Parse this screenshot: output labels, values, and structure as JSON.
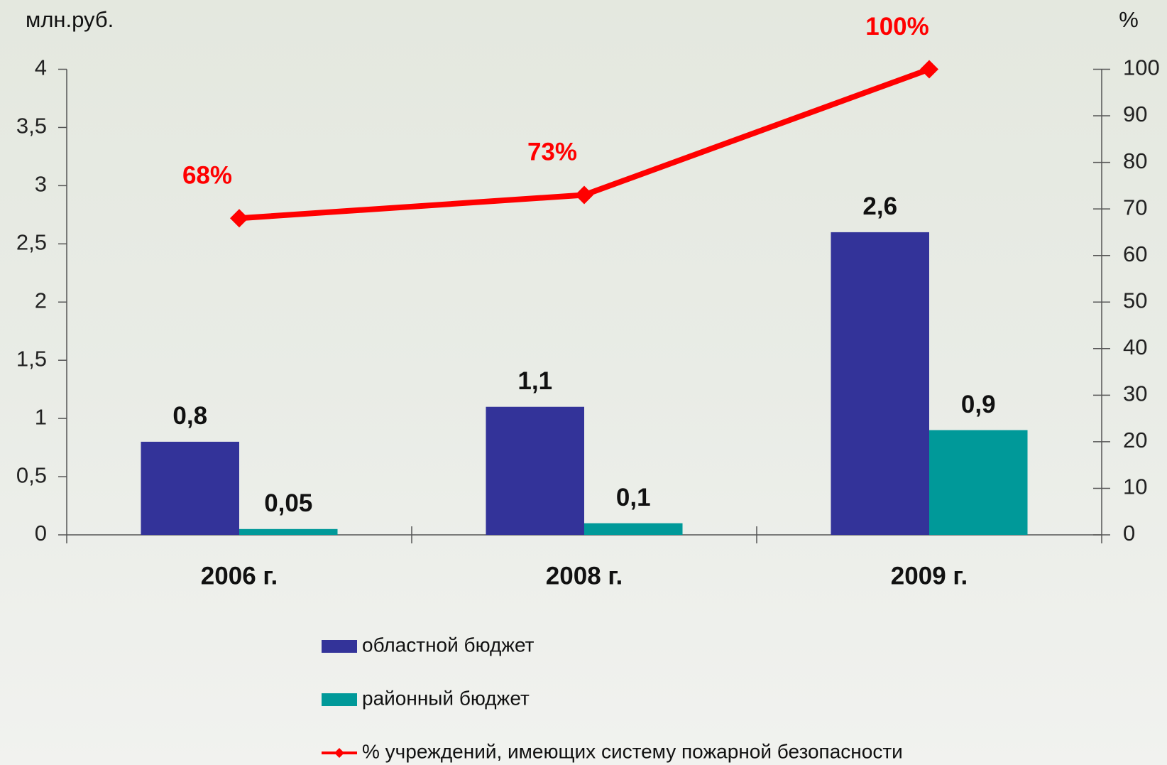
{
  "chart_data": {
    "type": "bar",
    "y_label": "млн.руб.",
    "y2_label": "%",
    "categories": [
      "2006 г.",
      "2008 г.",
      "2009 г."
    ],
    "series": [
      {
        "name": "областной бюджет",
        "color": "#333399",
        "values": [
          0.8,
          1.1,
          2.6
        ],
        "value_labels": [
          "0,8",
          "1,1",
          "2,6"
        ]
      },
      {
        "name": "районный бюджет",
        "color": "#009999",
        "values": [
          0.05,
          0.1,
          0.9
        ],
        "value_labels": [
          "0,05",
          "0,1",
          "0,9"
        ]
      },
      {
        "name": "% учреждений, имеющих систему пожарной безопасности",
        "color": "#ff0000",
        "type": "line",
        "axis": "y2",
        "values": [
          68,
          73,
          100
        ],
        "value_labels": [
          "68%",
          "73%",
          "100%"
        ]
      }
    ],
    "ylim": [
      0,
      4
    ],
    "yticks": [
      0,
      {
        "value": 0.5,
        "label": "0,5"
      },
      1,
      {
        "value": 1.5,
        "label": "1,5"
      },
      2,
      {
        "value": 2.5,
        "label": "2,5"
      },
      3,
      {
        "value": 3.5,
        "label": "3,5"
      },
      4
    ],
    "y2lim": [
      0,
      100
    ],
    "y2ticks": [
      0,
      10,
      20,
      30,
      40,
      50,
      60,
      70,
      80,
      90,
      100
    ],
    "grid": false
  }
}
